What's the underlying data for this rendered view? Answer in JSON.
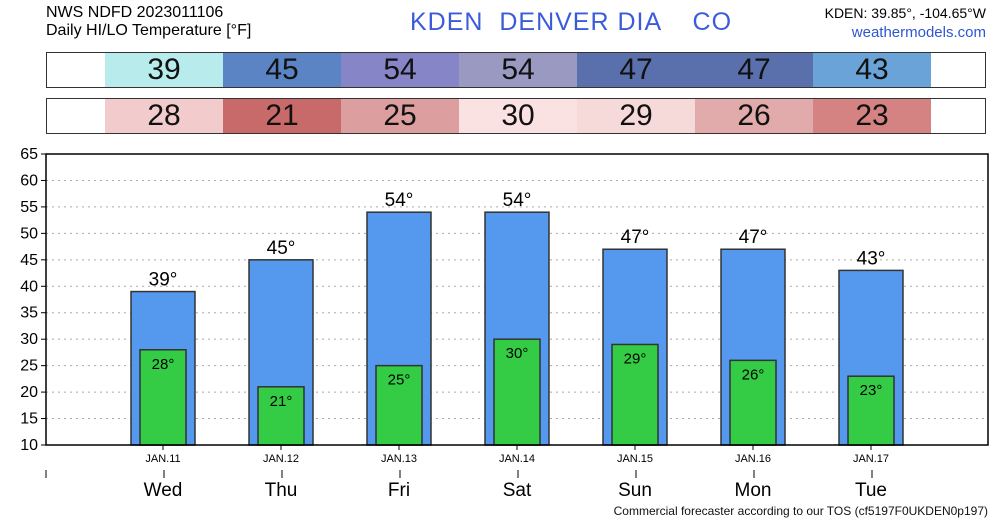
{
  "header": {
    "line1": "NWS NDFD 2023011106",
    "line2": "Daily HI/LO Temperature [°F]",
    "title": "KDEN  DENVER DIA    CO",
    "coords": "KDEN: 39.85°, -104.65°W",
    "site": "weathermodels.com"
  },
  "strips": {
    "hi": [
      {
        "value": "39",
        "color": "#b8ecec"
      },
      {
        "value": "45",
        "color": "#5b84c4"
      },
      {
        "value": "54",
        "color": "#8585c8"
      },
      {
        "value": "54",
        "color": "#9a99c2"
      },
      {
        "value": "47",
        "color": "#5a70ac"
      },
      {
        "value": "47",
        "color": "#5a70ac"
      },
      {
        "value": "43",
        "color": "#6aa3d8"
      }
    ],
    "lo": [
      {
        "value": "28",
        "color": "#f2cccc"
      },
      {
        "value": "21",
        "color": "#c86a6a"
      },
      {
        "value": "25",
        "color": "#dc9e9e"
      },
      {
        "value": "30",
        "color": "#fae2e2"
      },
      {
        "value": "29",
        "color": "#f6dada"
      },
      {
        "value": "26",
        "color": "#e2abab"
      },
      {
        "value": "23",
        "color": "#d48282"
      }
    ]
  },
  "chart_data": {
    "type": "bar",
    "categories": [
      "Wed",
      "Thu",
      "Fri",
      "Sat",
      "Sun",
      "Mon",
      "Tue"
    ],
    "dates": [
      "JAN.11",
      "JAN.12",
      "JAN.13",
      "JAN.14",
      "JAN.15",
      "JAN.16",
      "JAN.17"
    ],
    "series": [
      {
        "values": [
          39,
          45,
          54,
          54,
          47,
          47,
          43
        ],
        "labels": [
          "39°",
          "45°",
          "54°",
          "54°",
          "47°",
          "47°",
          "43°"
        ],
        "color": "#5599ee"
      },
      {
        "values": [
          28,
          21,
          25,
          30,
          29,
          26,
          23
        ],
        "labels": [
          "28°",
          "21°",
          "25°",
          "30°",
          "29°",
          "26°",
          "23°"
        ],
        "color": "#33cc44"
      }
    ],
    "ylim": [
      10,
      65
    ],
    "yticks": [
      10,
      15,
      20,
      25,
      30,
      35,
      40,
      45,
      50,
      55,
      60,
      65
    ],
    "grid": true
  },
  "footer": {
    "text": "Commercial forecaster according to our TOS (cf5197F0UKDEN0p197)"
  }
}
